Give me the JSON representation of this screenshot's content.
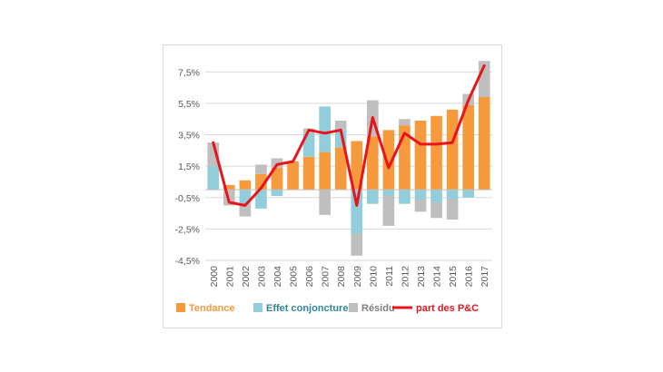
{
  "chart_data": {
    "type": "bar",
    "stacked": true,
    "categories": [
      "2000",
      "2001",
      "2002",
      "2003",
      "2004",
      "2005",
      "2006",
      "2007",
      "2008",
      "2009",
      "2010",
      "2011",
      "2012",
      "2013",
      "2014",
      "2015",
      "2016",
      "2017"
    ],
    "series": [
      {
        "name": "Tendance",
        "type": "bar",
        "color": "#f79a3e",
        "values": [
          0.0,
          0.3,
          0.6,
          1.0,
          1.4,
          1.8,
          2.1,
          2.4,
          2.7,
          3.1,
          3.4,
          3.8,
          4.1,
          4.4,
          4.7,
          5.1,
          5.4,
          5.9
        ]
      },
      {
        "name": "Effet conjoncturel",
        "type": "bar",
        "color": "#92cddc",
        "values": [
          1.5,
          0.0,
          -0.9,
          -1.2,
          -0.4,
          0.0,
          1.5,
          2.9,
          1.1,
          -2.8,
          -0.9,
          -0.4,
          -0.9,
          -0.6,
          -0.8,
          -0.6,
          -0.5,
          0.0
        ]
      },
      {
        "name": "Résidu",
        "type": "bar",
        "color": "#bfbfbf",
        "values": [
          1.5,
          -1.0,
          -0.8,
          0.6,
          0.6,
          0.0,
          0.3,
          -1.6,
          0.6,
          -1.4,
          2.3,
          -1.9,
          0.4,
          -0.8,
          -1.0,
          -1.3,
          0.7,
          2.3
        ]
      },
      {
        "name": "part des P&C",
        "type": "line",
        "color": "#e8141c",
        "values": [
          3.0,
          -0.8,
          -1.0,
          0.1,
          1.6,
          1.8,
          3.8,
          3.6,
          3.8,
          -1.0,
          4.6,
          1.4,
          3.6,
          2.9,
          2.9,
          3.0,
          5.7,
          7.9
        ]
      }
    ],
    "ylim": [
      -4.5,
      8.5
    ],
    "yticks": [
      -4.5,
      -2.5,
      -0.5,
      1.5,
      3.5,
      5.5,
      7.5
    ],
    "ytick_labels": [
      "-4,5%",
      "-2,5%",
      "-0,5%",
      "1,5%",
      "3,5%",
      "5,5%",
      "7,5%"
    ],
    "grid": "horizontal",
    "legend": "bottom",
    "title": "",
    "xlabel": "",
    "ylabel": ""
  }
}
